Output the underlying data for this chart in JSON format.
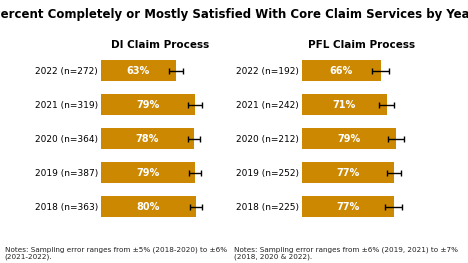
{
  "title": "Percent Completely or Mostly Satisfied With Core Claim Services by Year",
  "di_title": "DI Claim Process",
  "pfl_title": "PFL Claim Process",
  "di_labels": [
    "2022 (n=272)",
    "2021 (n=319)",
    "2020 (n=364)",
    "2019 (n=387)",
    "2018 (n=363)"
  ],
  "pfl_labels": [
    "2022 (n=192)",
    "2021 (n=242)",
    "2020 (n=212)",
    "2019 (n=252)",
    "2018 (n=225)"
  ],
  "di_values": [
    63,
    79,
    78,
    79,
    80
  ],
  "pfl_values": [
    66,
    71,
    79,
    77,
    77
  ],
  "di_errors": [
    6,
    6,
    5,
    5,
    5
  ],
  "pfl_errors": [
    7,
    6,
    7,
    6,
    7
  ],
  "bar_color": "#CC8800",
  "note_di": "Notes: Sampling error ranges from ±5% (2018-2020) to ±6%\n(2021-2022).",
  "note_pfl": "Notes: Sampling error ranges from ±6% (2019, 2021) to ±7%\n(2018, 2020 & 2022).",
  "title_fontsize": 8.5,
  "subtitle_fontsize": 7.5,
  "label_fontsize": 6.5,
  "note_fontsize": 5.2,
  "value_fontsize": 7,
  "xlim": [
    0,
    100
  ],
  "background_color": "#ffffff"
}
